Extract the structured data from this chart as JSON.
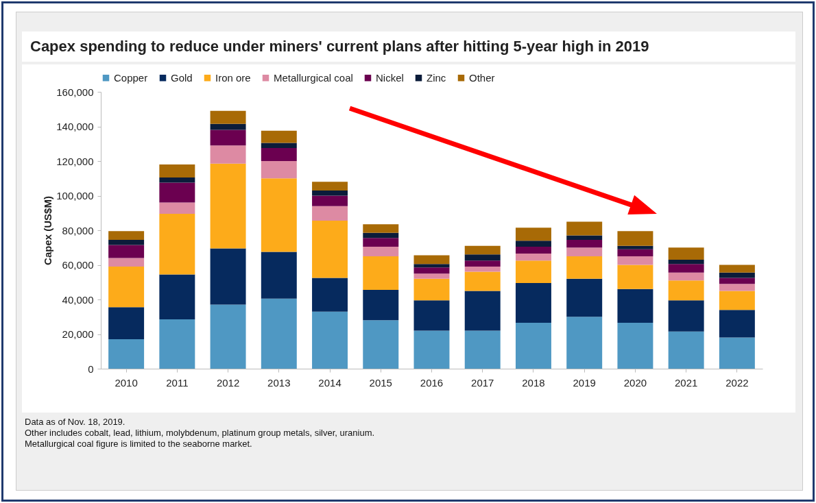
{
  "chart_data": {
    "type": "bar",
    "title": "Capex spending to reduce under miners' current plans after hitting 5-year high in 2019",
    "ylabel": "Capex (US$M)",
    "categories": [
      "2010",
      "2011",
      "2012",
      "2013",
      "2014",
      "2015",
      "2016",
      "2017",
      "2018",
      "2019",
      "2020",
      "2021",
      "2022"
    ],
    "stacked": true,
    "legend": "top",
    "grid": false,
    "ylim": [
      0,
      160000
    ],
    "yticks": [
      {
        "value": 0,
        "label": "0"
      },
      {
        "value": 20000,
        "label": "20,000"
      },
      {
        "value": 40000,
        "label": "40,000"
      },
      {
        "value": 60000,
        "label": "60,000"
      },
      {
        "value": 80000,
        "label": "80,000"
      },
      {
        "value": 100000,
        "label": "100,000"
      },
      {
        "value": 120000,
        "label": "120,000"
      },
      {
        "value": 140000,
        "label": "140,000"
      },
      {
        "value": 160000,
        "label": "160,000"
      }
    ],
    "series": [
      {
        "name": "Copper",
        "color": "#4f98c3",
        "values": [
          17000,
          28500,
          37000,
          40500,
          33000,
          28000,
          22000,
          22000,
          26500,
          30000,
          26500,
          21500,
          18000
        ]
      },
      {
        "name": "Gold",
        "color": "#062a5e",
        "values": [
          18500,
          26000,
          32500,
          27000,
          19500,
          17500,
          17500,
          23000,
          23000,
          22000,
          19500,
          18000,
          16000
        ]
      },
      {
        "name": "Iron ore",
        "color": "#fdab1a",
        "values": [
          23500,
          35000,
          49000,
          42500,
          33000,
          19500,
          12500,
          11000,
          13000,
          13000,
          14000,
          11500,
          11000
        ]
      },
      {
        "name": "Metallurgical coal",
        "color": "#dd8aa3",
        "values": [
          5000,
          6500,
          10500,
          10000,
          8500,
          5500,
          3000,
          3000,
          4000,
          5000,
          5000,
          4500,
          4000
        ]
      },
      {
        "name": "Nickel",
        "color": "#6b0050",
        "values": [
          7500,
          11500,
          9000,
          7500,
          6000,
          5000,
          3500,
          3500,
          4000,
          4500,
          4000,
          5000,
          3500
        ]
      },
      {
        "name": "Zinc",
        "color": "#0b1c3a",
        "values": [
          3000,
          3000,
          3500,
          3000,
          3000,
          3000,
          2000,
          3500,
          3500,
          2500,
          2000,
          2500,
          3000
        ]
      },
      {
        "name": "Other",
        "color": "#a86a06",
        "values": [
          5000,
          7500,
          7500,
          7000,
          5000,
          5000,
          5000,
          5000,
          7500,
          8000,
          8500,
          7000,
          4500
        ]
      }
    ],
    "annotations": [
      "Data as of Nov. 18, 2019.",
      "Other includes cobalt, lead, lithium, molybdenum, platinum group metals, silver, uranium.",
      "Metallurgical coal figure is limited to the seaborne market."
    ]
  }
}
